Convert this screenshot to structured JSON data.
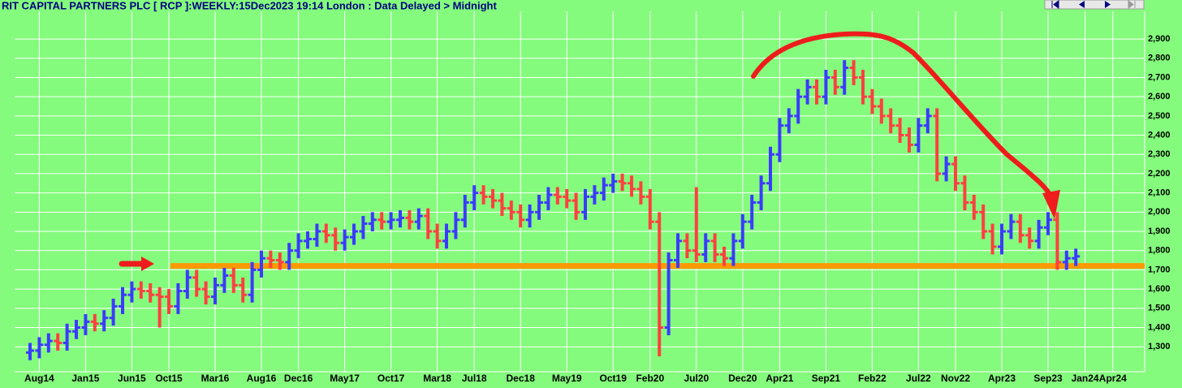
{
  "chart_data": {
    "type": "ohlc",
    "title": "RIT CAPITAL PARTNERS PLC [ RCP ]:WEEKLY:15Dec2023 19:14 London : Data Delayed > Midnight",
    "categories": [
      null,
      "Aug14",
      null,
      null,
      null,
      null,
      "Jan15",
      null,
      null,
      null,
      null,
      "Jun15",
      null,
      null,
      null,
      "Oct15",
      null,
      null,
      null,
      null,
      "Mar16",
      null,
      null,
      null,
      null,
      "Aug16",
      null,
      null,
      null,
      "Dec16",
      null,
      null,
      null,
      null,
      "May17",
      null,
      null,
      null,
      null,
      "Oct17",
      null,
      null,
      null,
      null,
      "Mar18",
      null,
      null,
      null,
      "Jul18",
      null,
      null,
      null,
      null,
      "Dec18",
      null,
      null,
      null,
      null,
      "May19",
      null,
      null,
      null,
      null,
      "Oct19",
      null,
      null,
      null,
      "Feb20",
      null,
      null,
      null,
      null,
      "Jul20",
      null,
      null,
      null,
      null,
      "Dec20",
      null,
      null,
      null,
      "Apr21",
      null,
      null,
      null,
      null,
      "Sep21",
      null,
      null,
      null,
      null,
      "Feb22",
      null,
      null,
      null,
      null,
      "Jul22",
      null,
      null,
      null,
      "Nov22",
      null,
      null,
      null,
      null,
      "Apr23",
      null,
      null,
      null,
      null,
      "Sep23",
      null,
      null,
      null,
      "Jan24",
      null,
      null,
      "Apr24"
    ],
    "open": [
      1270,
      1280,
      1310,
      1330,
      1320,
      1380,
      1400,
      1430,
      1420,
      1450,
      1510,
      1570,
      1600,
      1590,
      1570,
      1560,
      1510,
      1590,
      1660,
      1600,
      1560,
      1620,
      1670,
      1620,
      1570,
      1700,
      1760,
      1750,
      1740,
      1800,
      1850,
      1860,
      1900,
      1880,
      1840,
      1870,
      1900,
      1940,
      1960,
      1950,
      1960,
      1970,
      1950,
      1980,
      1900,
      1850,
      1900,
      1960,
      2050,
      2100,
      2080,
      2060,
      2020,
      2000,
      1960,
      2000,
      2050,
      2090,
      2080,
      2060,
      2000,
      2080,
      2100,
      2140,
      2160,
      2150,
      2120,
      2080,
      1950,
      1400,
      1750,
      1850,
      1800,
      1780,
      1850,
      1780,
      1760,
      1850,
      1950,
      2050,
      2150,
      2300,
      2450,
      2500,
      2600,
      2650,
      2600,
      2700,
      2650,
      2750,
      2700,
      2600,
      2550,
      2500,
      2450,
      2400,
      2350,
      2450,
      2500,
      2200,
      2250,
      2150,
      2050,
      2000,
      1900,
      1820,
      1900,
      1950,
      1880,
      1850,
      1920,
      1960,
      1740,
      1760,
      null,
      null,
      null,
      null
    ],
    "high": [
      1320,
      1350,
      1370,
      1370,
      1420,
      1440,
      1470,
      1470,
      1490,
      1550,
      1610,
      1640,
      1640,
      1630,
      1610,
      1600,
      1630,
      1700,
      1700,
      1640,
      1660,
      1710,
      1710,
      1660,
      1740,
      1800,
      1800,
      1790,
      1840,
      1890,
      1900,
      1940,
      1940,
      1920,
      1910,
      1940,
      1980,
      2000,
      2000,
      2000,
      2010,
      2010,
      2020,
      2020,
      1940,
      1940,
      2000,
      2090,
      2140,
      2140,
      2120,
      2100,
      2060,
      2040,
      2040,
      2090,
      2130,
      2130,
      2120,
      2100,
      2120,
      2140,
      2180,
      2200,
      2200,
      2190,
      2160,
      2120,
      2000,
      1790,
      1890,
      1890,
      2130,
      1890,
      1890,
      1820,
      1890,
      1990,
      2090,
      2190,
      2340,
      2490,
      2540,
      2640,
      2690,
      2690,
      2740,
      2740,
      2790,
      2790,
      2740,
      2640,
      2590,
      2540,
      2490,
      2440,
      2490,
      2540,
      2540,
      2290,
      2290,
      2190,
      2090,
      2040,
      1940,
      1940,
      1990,
      1990,
      1920,
      1960,
      2000,
      2000,
      1800,
      1810,
      null,
      null,
      null,
      null
    ],
    "low": [
      1230,
      1240,
      1270,
      1280,
      1280,
      1340,
      1360,
      1380,
      1380,
      1410,
      1470,
      1530,
      1550,
      1530,
      1400,
      1470,
      1470,
      1550,
      1560,
      1520,
      1520,
      1580,
      1580,
      1530,
      1530,
      1660,
      1710,
      1700,
      1700,
      1760,
      1810,
      1820,
      1840,
      1800,
      1800,
      1830,
      1860,
      1900,
      1910,
      1910,
      1920,
      1910,
      1910,
      1860,
      1810,
      1810,
      1860,
      1920,
      2010,
      2040,
      2020,
      1980,
      1960,
      1920,
      1920,
      1960,
      2010,
      2040,
      2020,
      1960,
      1960,
      2040,
      2060,
      2100,
      2110,
      2080,
      2040,
      1910,
      1250,
      1360,
      1710,
      1760,
      1740,
      1740,
      1740,
      1720,
      1720,
      1810,
      1910,
      2010,
      2110,
      2260,
      2410,
      2460,
      2560,
      2560,
      2560,
      2610,
      2610,
      2660,
      2560,
      2510,
      2460,
      2410,
      2360,
      2310,
      2310,
      2410,
      2160,
      2160,
      2110,
      2010,
      1960,
      1860,
      1780,
      1780,
      1860,
      1840,
      1810,
      1810,
      1880,
      1700,
      1700,
      1720,
      null,
      null,
      null,
      null
    ],
    "close": [
      1280,
      1310,
      1330,
      1320,
      1380,
      1400,
      1430,
      1420,
      1450,
      1510,
      1570,
      1600,
      1590,
      1570,
      1560,
      1510,
      1590,
      1660,
      1600,
      1560,
      1620,
      1670,
      1620,
      1570,
      1700,
      1760,
      1750,
      1740,
      1800,
      1850,
      1860,
      1900,
      1880,
      1840,
      1870,
      1900,
      1940,
      1960,
      1950,
      1960,
      1970,
      1950,
      1980,
      1900,
      1850,
      1900,
      1960,
      2050,
      2100,
      2080,
      2060,
      2020,
      2000,
      1960,
      2000,
      2050,
      2090,
      2080,
      2060,
      2000,
      2080,
      2100,
      2140,
      2160,
      2150,
      2120,
      2080,
      1950,
      1400,
      1750,
      1850,
      1800,
      1780,
      1850,
      1780,
      1760,
      1850,
      1950,
      2050,
      2150,
      2300,
      2450,
      2500,
      2600,
      2650,
      2600,
      2700,
      2650,
      2750,
      2700,
      2600,
      2550,
      2500,
      2450,
      2400,
      2350,
      2450,
      2500,
      2200,
      2250,
      2150,
      2050,
      2000,
      1900,
      1820,
      1900,
      1950,
      1880,
      1850,
      1920,
      1960,
      1740,
      1760,
      1770,
      null,
      null,
      null,
      null
    ],
    "up_color": "#3b3bff",
    "down_color": "#ff4040",
    "reference_line": {
      "value": 1720,
      "color": "#ff9900"
    },
    "ylim": [
      1170,
      3010
    ],
    "yticks": [
      {
        "value": 1300,
        "label": "1,300"
      },
      {
        "value": 1400,
        "label": "1,400"
      },
      {
        "value": 1500,
        "label": "1,500"
      },
      {
        "value": 1600,
        "label": "1,600"
      },
      {
        "value": 1700,
        "label": "1,700"
      },
      {
        "value": 1800,
        "label": "1,800"
      },
      {
        "value": 1900,
        "label": "1,900"
      },
      {
        "value": 2000,
        "label": "2,000"
      },
      {
        "value": 2100,
        "label": "2,100"
      },
      {
        "value": 2200,
        "label": "2,200"
      },
      {
        "value": 2300,
        "label": "2,300"
      },
      {
        "value": 2400,
        "label": "2,400"
      },
      {
        "value": 2500,
        "label": "2,500"
      },
      {
        "value": 2600,
        "label": "2,600"
      },
      {
        "value": 2700,
        "label": "2,700"
      },
      {
        "value": 2800,
        "label": "2,800"
      },
      {
        "value": 2900,
        "label": "2,900"
      }
    ],
    "grid": true
  }
}
